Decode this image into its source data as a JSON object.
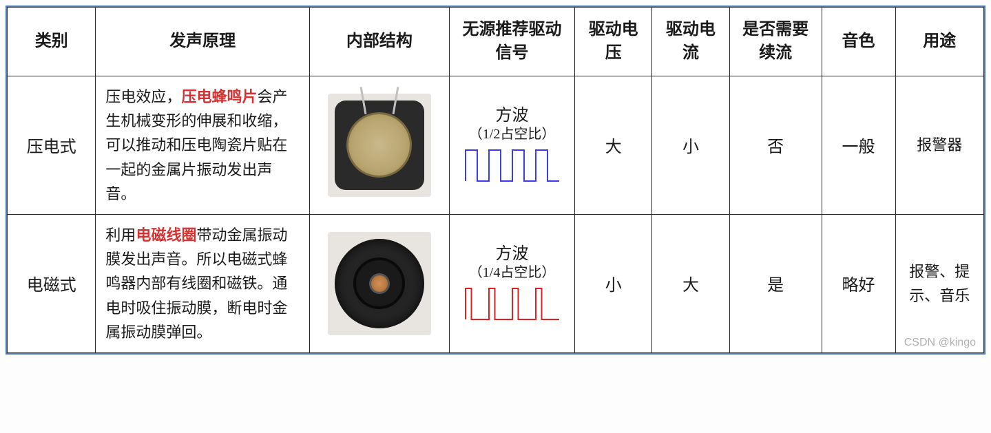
{
  "table": {
    "headers": {
      "category": "类别",
      "principle": "发声原理",
      "structure": "内部结构",
      "signal": "无源推荐驱动信号",
      "voltage": "驱动电压",
      "current": "驱动电流",
      "freewheel": "是否需要续流",
      "tone": "音色",
      "usage": "用途"
    },
    "rows": [
      {
        "category": "压电式",
        "principle_pre": "压电效应，",
        "principle_highlight": "压电蜂鸣片",
        "principle_post": "会产生机械变形的伸展和收缩，可以推动和压电陶瓷片贴在一起的金属片振动发出声音。",
        "signal_title": "方波",
        "signal_sub": "（1/2占空比）",
        "signal_duty": 0.5,
        "signal_color": "#3a3af0",
        "voltage": "大",
        "current": "小",
        "freewheel": "否",
        "tone": "一般",
        "usage": "报警器"
      },
      {
        "category": "电磁式",
        "principle_pre": "利用",
        "principle_highlight": "电磁线圈",
        "principle_post": "带动金属振动膜发出声音。所以电磁式蜂鸣器内部有线圈和磁铁。通电时吸住振动膜，断电时金属振动膜弹回。",
        "signal_title": "方波",
        "signal_sub": "（1/4占空比）",
        "signal_duty": 0.25,
        "signal_color": "#e02020",
        "voltage": "小",
        "current": "大",
        "freewheel": "是",
        "tone": "略好",
        "usage": "报警、提示、音乐"
      }
    ],
    "styling": {
      "border_color": "#2a2a2a",
      "outer_border_color": "#4a7ab8",
      "header_fontsize": 24,
      "cell_fontsize": 24,
      "principle_fontsize": 22,
      "highlight_color": "#d73030",
      "background_color": "#ffffff",
      "text_color": "#1a1a1a",
      "column_widths": {
        "category": 120,
        "principle": 290,
        "structure": 190,
        "signal": 170,
        "voltage": 105,
        "current": 105,
        "freewheel": 125,
        "tone": 100,
        "usage": 120
      },
      "wave": {
        "width": 140,
        "height": 55,
        "periods": 4,
        "stroke_width": 2
      }
    }
  },
  "watermark": "CSDN @kingo"
}
